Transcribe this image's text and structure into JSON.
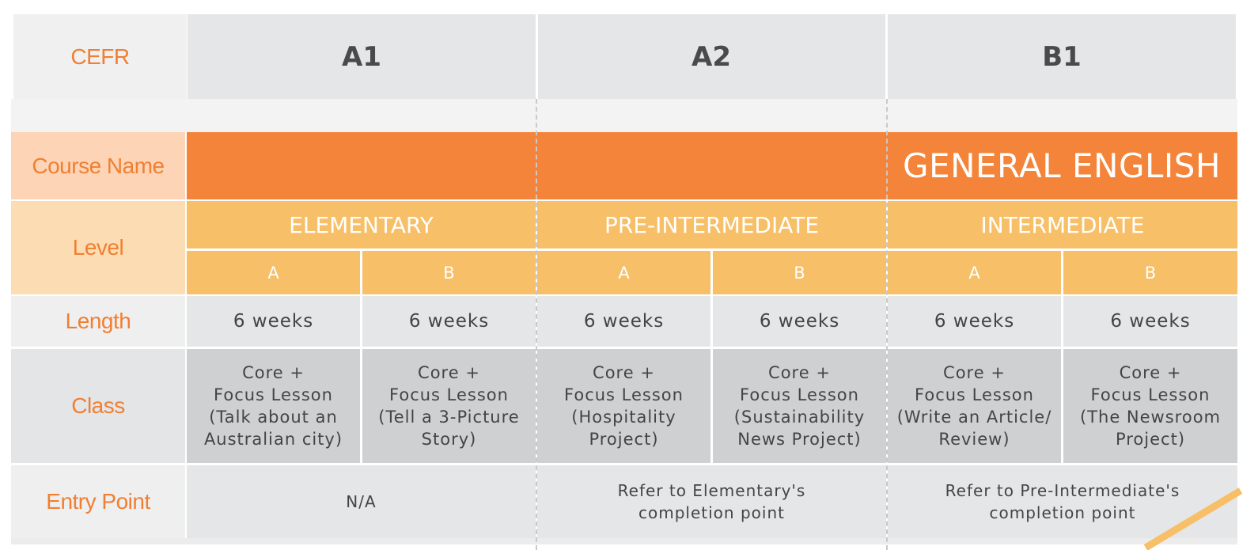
{
  "labels": {
    "cefr": "CEFR",
    "course_name": "Course Name",
    "level": "Level",
    "length": "Length",
    "class": "Class",
    "entry_point": "Entry Point"
  },
  "cefr_levels": [
    "A1",
    "A2",
    "B1"
  ],
  "course_title": "GENERAL ENGLISH",
  "levels": [
    "ELEMENTARY",
    "PRE-INTERMEDIATE",
    "INTERMEDIATE"
  ],
  "sublevels": [
    "A",
    "B",
    "A",
    "B",
    "A",
    "B"
  ],
  "lengths": [
    "6 weeks",
    "6 weeks",
    "6 weeks",
    "6 weeks",
    "6 weeks",
    "6 weeks"
  ],
  "classes": [
    "Core +\nFocus Lesson\n(Talk about an\nAustralian city)",
    "Core +\nFocus Lesson\n(Tell a 3-Picture\nStory)",
    "Core +\nFocus Lesson\n(Hospitality\nProject)",
    "Core +\nFocus Lesson\n(Sustainability\nNews Project)",
    "Core +\nFocus Lesson\n(Write an Article/\nReview)",
    "Core +\nFocus Lesson\n(The Newsroom\nProject)"
  ],
  "entry_points": [
    "N/A",
    "Refer to Elementary's\ncompletion point",
    "Refer to Pre-Intermediate's\ncompletion point"
  ],
  "colors": {
    "label_text": "#f07f32",
    "course_bar": "#f38439",
    "level_bar": "#f7bf67",
    "cell_light": "#e5e6e8",
    "cell_dark": "#cfd0d2"
  }
}
